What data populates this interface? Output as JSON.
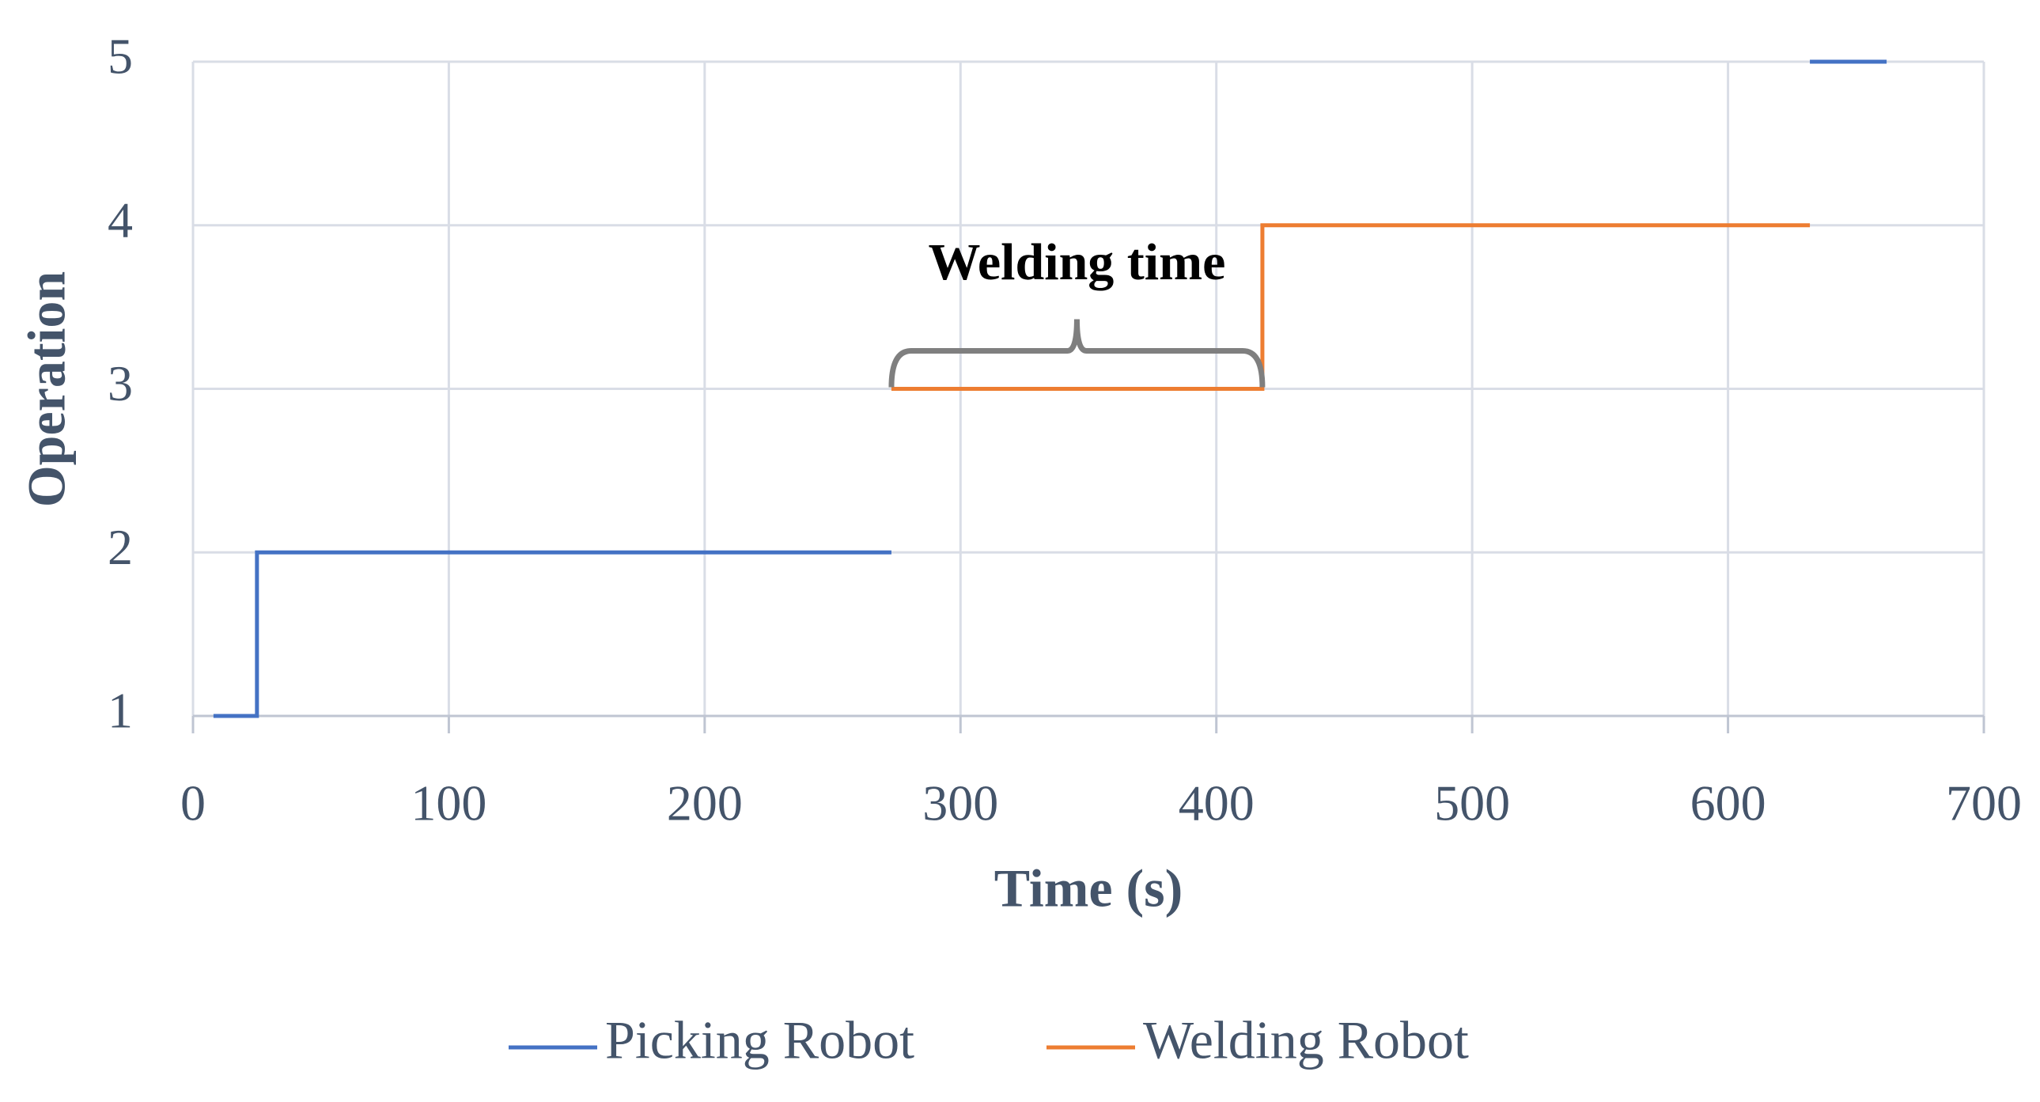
{
  "chart_data": {
    "type": "line",
    "x_label": "Time (s)",
    "y_label": "Operation",
    "annotation": "Welding time",
    "x": [
      8,
      25,
      25,
      273,
      273,
      418,
      418,
      632,
      632,
      662
    ],
    "series": [
      {
        "name": "Picking Robot",
        "color": "#4472c4",
        "values": [
          1,
          1,
          2,
          2,
          null,
          null,
          null,
          null,
          5,
          5
        ]
      },
      {
        "name": "Welding Robot",
        "color": "#ed7d31",
        "values": [
          null,
          null,
          null,
          null,
          3,
          3,
          4,
          4,
          null,
          null
        ]
      }
    ],
    "xlim": [
      0,
      700
    ],
    "xticks": [
      0,
      100,
      200,
      300,
      400,
      500,
      600,
      700
    ],
    "ylim": [
      1,
      5
    ],
    "yticks": [
      1,
      2,
      3,
      4,
      5
    ],
    "grid": true,
    "legend": "bottom"
  }
}
